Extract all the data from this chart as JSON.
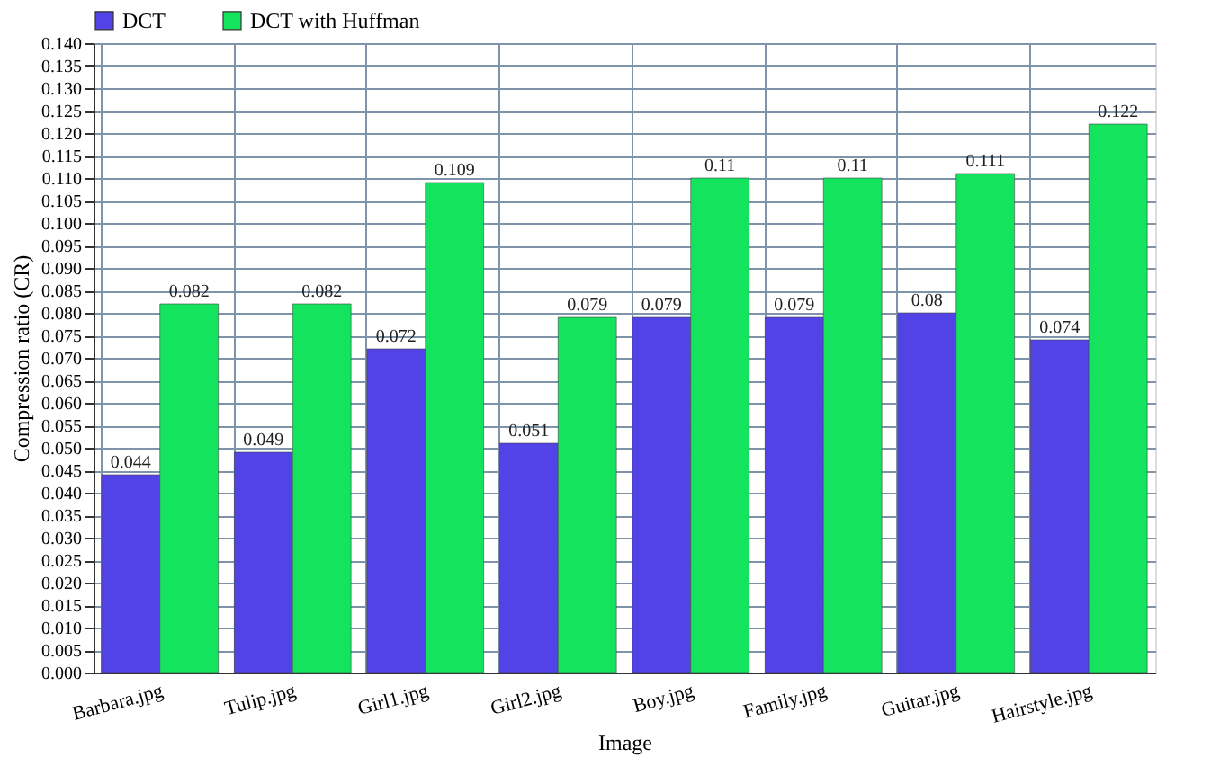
{
  "chart_data": {
    "type": "bar",
    "xlabel": "Image",
    "ylabel": "Compression ratio (CR)",
    "categories": [
      "Barbara.jpg",
      "Tulip.jpg",
      "Girl1.jpg",
      "Girl2.jpg",
      "Boy.jpg",
      "Family.jpg",
      "Guitar.jpg",
      "Hairstyle.jpg"
    ],
    "series": [
      {
        "name": "DCT",
        "color": "#5243e6",
        "values": [
          0.044,
          0.049,
          0.072,
          0.051,
          0.079,
          0.079,
          0.08,
          0.074
        ]
      },
      {
        "name": "DCT with Huffman",
        "color": "#14e35e",
        "values": [
          0.082,
          0.082,
          0.109,
          0.079,
          0.11,
          0.11,
          0.111,
          0.122
        ]
      }
    ],
    "ylim": [
      0,
      0.14
    ],
    "yticks": [
      {
        "value": 0,
        "label": "0.000"
      },
      {
        "value": 0.005,
        "label": "0.005"
      },
      {
        "value": 0.01,
        "label": "0.010"
      },
      {
        "value": 0.015,
        "label": "0.015"
      },
      {
        "value": 0.02,
        "label": "0.020"
      },
      {
        "value": 0.025,
        "label": "0.025"
      },
      {
        "value": 0.03,
        "label": "0.030"
      },
      {
        "value": 0.035,
        "label": "0.035"
      },
      {
        "value": 0.04,
        "label": "0.040"
      },
      {
        "value": 0.045,
        "label": "0.045"
      },
      {
        "value": 0.05,
        "label": "0.050"
      },
      {
        "value": 0.055,
        "label": "0.055"
      },
      {
        "value": 0.06,
        "label": "0.060"
      },
      {
        "value": 0.065,
        "label": "0.065"
      },
      {
        "value": 0.07,
        "label": "0.070"
      },
      {
        "value": 0.075,
        "label": "0.075"
      },
      {
        "value": 0.08,
        "label": "0.080"
      },
      {
        "value": 0.085,
        "label": "0.085"
      },
      {
        "value": 0.09,
        "label": "0.090"
      },
      {
        "value": 0.095,
        "label": "0.095"
      },
      {
        "value": 0.1,
        "label": "0.100"
      },
      {
        "value": 0.105,
        "label": "0.105"
      },
      {
        "value": 0.11,
        "label": "0.110"
      },
      {
        "value": 0.115,
        "label": "0.115"
      },
      {
        "value": 0.12,
        "label": "0.120"
      },
      {
        "value": 0.125,
        "label": "0.125"
      },
      {
        "value": 0.13,
        "label": "0.130"
      },
      {
        "value": 0.135,
        "label": "0.135"
      },
      {
        "value": 0.14,
        "label": "0.140"
      }
    ],
    "data_labels": true,
    "grid": true,
    "legend": "top left"
  }
}
